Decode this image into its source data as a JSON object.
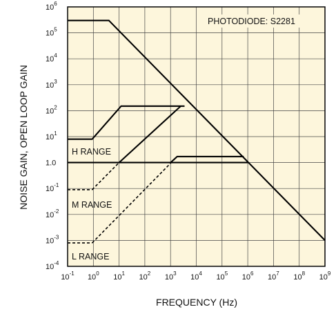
{
  "chart_data": {
    "type": "line",
    "xscale": "log",
    "yscale": "log",
    "xlim": [
      0.1,
      1000000000
    ],
    "ylim": [
      0.0001,
      1000000
    ],
    "grid": true,
    "xlabel": "FREQUENCY (Hz)",
    "ylabel": "NOISE GAIN, OPEN LOOP GAIN",
    "x_ticks": [
      {
        "base": "10",
        "exp": "-1"
      },
      {
        "base": "10",
        "exp": "0"
      },
      {
        "base": "10",
        "exp": "1"
      },
      {
        "base": "10",
        "exp": "2"
      },
      {
        "base": "10",
        "exp": "3"
      },
      {
        "base": "10",
        "exp": "4"
      },
      {
        "base": "10",
        "exp": "5"
      },
      {
        "base": "10",
        "exp": "6"
      },
      {
        "base": "10",
        "exp": "7"
      },
      {
        "base": "10",
        "exp": "8"
      },
      {
        "base": "10",
        "exp": "9"
      }
    ],
    "y_ticks": [
      {
        "base": "10",
        "exp": "-4",
        "value": 0.0001
      },
      {
        "base": "10",
        "exp": "-3",
        "value": 0.001
      },
      {
        "base": "10",
        "exp": "-2",
        "value": 0.01
      },
      {
        "base": "10",
        "exp": "-1",
        "value": 0.1
      },
      {
        "base": "1.0",
        "exp": "",
        "value": 1
      },
      {
        "base": "10",
        "exp": "1",
        "value": 10
      },
      {
        "base": "10",
        "exp": "2",
        "value": 100
      },
      {
        "base": "10",
        "exp": "3",
        "value": 1000
      },
      {
        "base": "10",
        "exp": "4",
        "value": 10000
      },
      {
        "base": "10",
        "exp": "5",
        "value": 100000
      },
      {
        "base": "10",
        "exp": "6",
        "value": 1000000
      }
    ],
    "annotations": [
      "PHOTODIODE: S2281",
      "H RANGE",
      "M RANGE",
      "L RANGE"
    ],
    "series": [
      {
        "x": [
          0.1,
          4.0,
          1000000000
        ],
        "y": [
          300000,
          300000,
          0.001
        ],
        "dashed": false
      },
      {
        "x": [
          0.1,
          0.9,
          12,
          3500
        ],
        "y": [
          8,
          8,
          150,
          150
        ],
        "dashed": false
      },
      {
        "x": [
          0.1,
          1000,
          1000000
        ],
        "y": [
          1,
          1,
          1
        ],
        "dashed": false
      },
      {
        "x": [
          1000,
          1800,
          700000
        ],
        "y": [
          1,
          1.7,
          1.7
        ],
        "dashed": false
      },
      {
        "x": [
          10,
          2500
        ],
        "y": [
          1,
          150
        ],
        "dashed": false
      },
      {
        "x": [
          0.1,
          0.9
        ],
        "y": [
          0.09,
          0.09
        ],
        "dashed": true
      },
      {
        "x": [
          0.9,
          10
        ],
        "y": [
          0.09,
          1
        ],
        "dashed": true
      },
      {
        "x": [
          0.1,
          0.9
        ],
        "y": [
          0.0008,
          0.0008
        ],
        "dashed": true
      },
      {
        "x": [
          0.9,
          1800
        ],
        "y": [
          0.0008,
          1.7
        ],
        "dashed": true
      }
    ]
  }
}
